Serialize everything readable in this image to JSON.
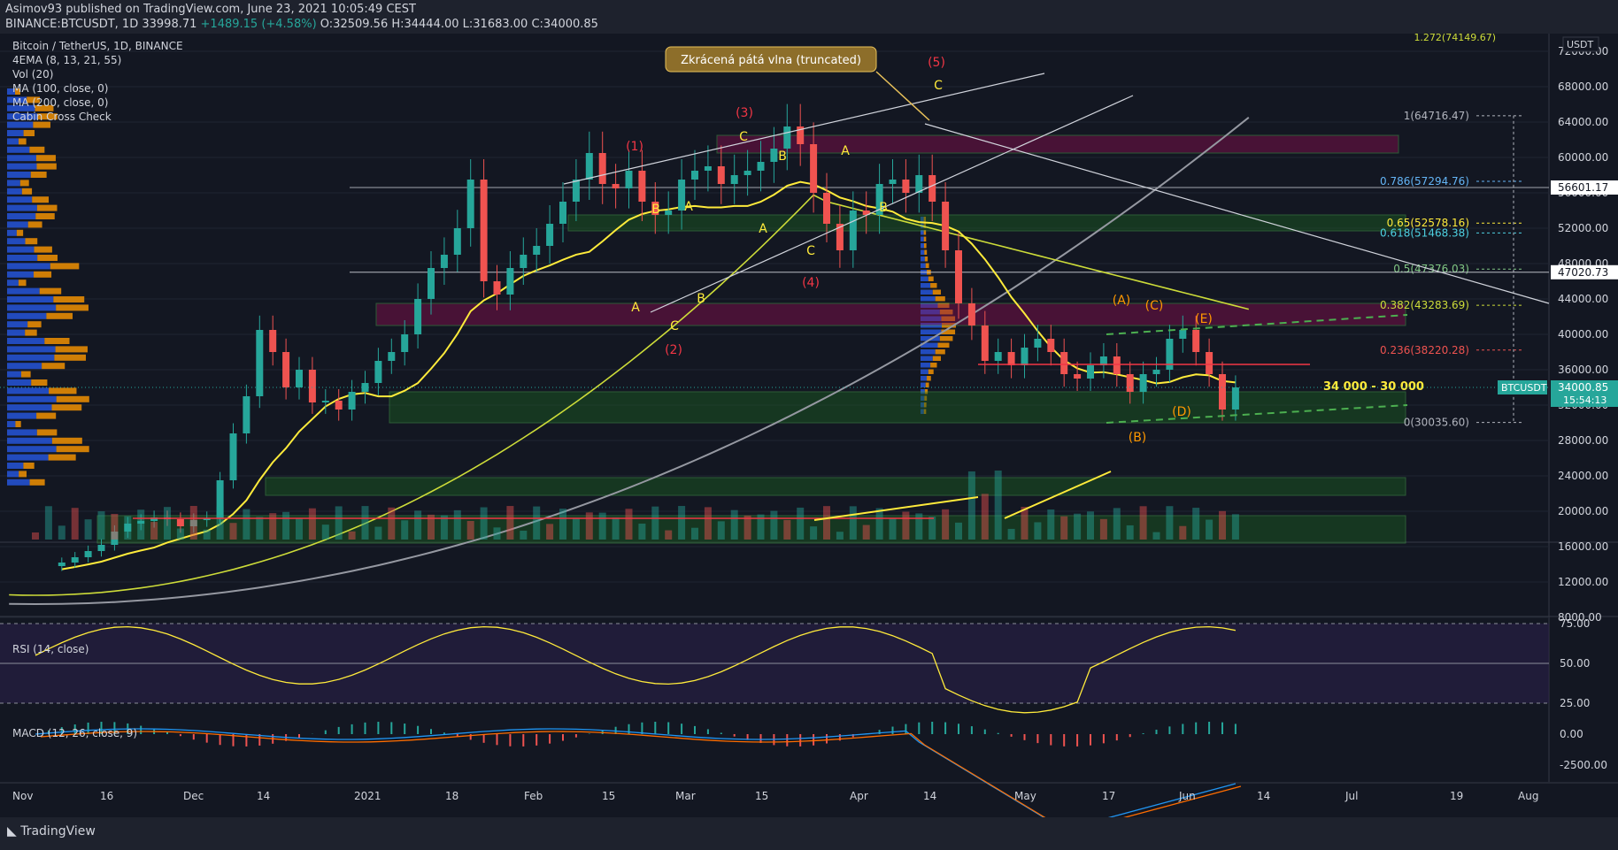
{
  "header": {
    "publisher_line": "Asimov93 published on TradingView.com, June 23, 2021 10:05:49 CEST",
    "symbol": "BINANCE:BTCUSDT, 1D",
    "last": "33998.71",
    "change": "+1489.15 (+4.58%)",
    "ohlc": "O:32509.56 H:34444.00 L:31683.00 C:34000.85"
  },
  "legend": {
    "title": "Bitcoin / TetherUS, 1D, BINANCE",
    "ind1": "4EMA (8, 13, 21, 55)",
    "ind2": "Vol (20)",
    "ind3": "MA (100, close, 0)",
    "ind4": "MA (200, close, 0)",
    "ind5": "Cabin Cross Check",
    "rsi": "RSI (14, close)",
    "macd": "MACD (12, 26, close, 9)"
  },
  "callout": "Zkrácená pátá vlna (truncated)",
  "range_note": "34 000 - 30 000",
  "price_tag": {
    "symbol": "BTCUSDT",
    "price": "34000.85",
    "countdown": "15:54:13"
  },
  "currency": "USDT",
  "footer": {
    "brand": "TradingView"
  },
  "colors": {
    "up": "#26a69a",
    "down": "#ef5350",
    "wave": "#ffeb3b",
    "red_label": "#f23645",
    "orange_label": "#ff9800"
  },
  "chart_data": {
    "type": "candlestick",
    "price_axis": [
      "72000.00",
      "68000.00",
      "64000.00",
      "60000.00",
      "56000.00",
      "52000.00",
      "48000.00",
      "44000.00",
      "40000.00",
      "36000.00",
      "32000.00",
      "28000.00",
      "24000.00",
      "20000.00",
      "16000.00",
      "12000.00",
      "8000.00"
    ],
    "time_axis": [
      "Nov",
      "16",
      "Dec",
      "14",
      "2021",
      "18",
      "Feb",
      "15",
      "Mar",
      "15",
      "Apr",
      "14",
      "May",
      "17",
      "Jun",
      "14",
      "Jul",
      "19",
      "Aug"
    ],
    "rsi_axis": [
      "75.00",
      "50.00",
      "25.00"
    ],
    "macd_axis": [
      "0.00",
      "-2500.00"
    ],
    "highlighted_prices": [
      "56601.17",
      "47020.73"
    ],
    "fib_levels": [
      "1(64716.47)",
      "0.786(57294.76)",
      "0.65(52578.16)",
      "0.618(51468.38)",
      "0.5(47376.03)",
      "0.382(43283.69)",
      "0.236(38220.28)",
      "0(30035.60)"
    ],
    "fib_top_partial": "1.272(74149.67)",
    "close_path": [
      [
        1.5,
        13800
      ],
      [
        2,
        14200
      ],
      [
        3,
        14800
      ],
      [
        4,
        15500
      ],
      [
        5,
        16200
      ],
      [
        6,
        17700
      ],
      [
        7,
        18600
      ],
      [
        8,
        18900
      ],
      [
        9,
        19300
      ],
      [
        10,
        19100
      ],
      [
        11,
        18300
      ],
      [
        12,
        19000
      ],
      [
        13,
        19200
      ],
      [
        14,
        23500
      ],
      [
        15,
        28800
      ],
      [
        16,
        33000
      ],
      [
        17,
        40500
      ],
      [
        18,
        38000
      ],
      [
        19,
        34000
      ],
      [
        20,
        36000
      ],
      [
        21,
        32300
      ],
      [
        22,
        32500
      ],
      [
        23,
        31500
      ],
      [
        24,
        33500
      ],
      [
        25,
        34500
      ],
      [
        26,
        37000
      ],
      [
        27,
        38000
      ],
      [
        28,
        40000
      ],
      [
        29,
        44000
      ],
      [
        30,
        47500
      ],
      [
        31,
        49000
      ],
      [
        32,
        52000
      ],
      [
        33,
        57500
      ],
      [
        34,
        46000
      ],
      [
        35,
        44500
      ],
      [
        36,
        47500
      ],
      [
        37,
        49000
      ],
      [
        38,
        50000
      ],
      [
        39,
        52500
      ],
      [
        40,
        55000
      ],
      [
        41,
        57500
      ],
      [
        42,
        60500
      ],
      [
        43,
        57000
      ],
      [
        44,
        56500
      ],
      [
        45,
        58500
      ],
      [
        46,
        55000
      ],
      [
        47,
        53500
      ],
      [
        48,
        54000
      ],
      [
        49,
        57500
      ],
      [
        50,
        58500
      ],
      [
        51,
        59000
      ],
      [
        52,
        57000
      ],
      [
        53,
        58000
      ],
      [
        54,
        58500
      ],
      [
        55,
        59500
      ],
      [
        56,
        61000
      ],
      [
        57,
        63500
      ],
      [
        58,
        61500
      ],
      [
        59,
        56000
      ],
      [
        60,
        52500
      ],
      [
        61,
        49500
      ],
      [
        62,
        54000
      ],
      [
        63,
        53500
      ],
      [
        64,
        57000
      ],
      [
        65,
        57500
      ],
      [
        66,
        56000
      ],
      [
        67,
        58000
      ],
      [
        68,
        55000
      ],
      [
        69,
        49500
      ],
      [
        70,
        43500
      ],
      [
        71,
        41000
      ],
      [
        72,
        37000
      ],
      [
        73,
        38000
      ],
      [
        74,
        36500
      ],
      [
        75,
        38500
      ],
      [
        76,
        39500
      ],
      [
        77,
        38000
      ],
      [
        78,
        35500
      ],
      [
        79,
        35000
      ],
      [
        80,
        36500
      ],
      [
        81,
        37500
      ],
      [
        82,
        35500
      ],
      [
        83,
        33500
      ],
      [
        84,
        35500
      ],
      [
        85,
        36000
      ],
      [
        86,
        39500
      ],
      [
        87,
        40500
      ],
      [
        88,
        38000
      ],
      [
        89,
        35500
      ],
      [
        90,
        31500
      ],
      [
        91,
        34000
      ]
    ]
  }
}
